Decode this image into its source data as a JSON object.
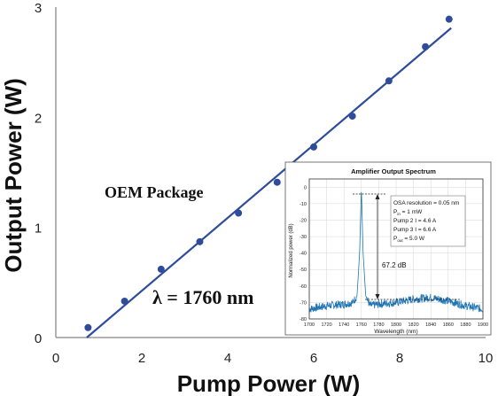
{
  "chart_data": [
    {
      "type": "scatter",
      "title": "",
      "xlabel": "Pump Power (W)",
      "ylabel": "Output Power (W)",
      "xlim": [
        0,
        10
      ],
      "ylim": [
        0,
        3
      ],
      "xticks": [
        "0",
        "2",
        "4",
        "6",
        "8",
        "10"
      ],
      "yticks": [
        "0",
        "1",
        "2",
        "3"
      ],
      "grid": false,
      "series": [
        {
          "points": [
            [
              0.75,
              0.09
            ],
            [
              1.6,
              0.33
            ],
            [
              2.45,
              0.62
            ],
            [
              3.35,
              0.87
            ],
            [
              4.25,
              1.13
            ],
            [
              5.15,
              1.41
            ],
            [
              6.0,
              1.73
            ],
            [
              6.9,
              2.01
            ],
            [
              7.75,
              2.33
            ],
            [
              8.6,
              2.64
            ],
            [
              9.15,
              2.89
            ]
          ],
          "color": "#2e4c9a"
        },
        {
          "type": "line",
          "fit_line": [
            [
              0.72,
              0.0
            ],
            [
              9.2,
              2.81
            ]
          ],
          "color": "#2e4c9a"
        }
      ],
      "annotations": [
        "OEM Package",
        "λ  = 1760 nm"
      ]
    },
    {
      "type": "line",
      "title": "Amplifier Output Spectrum",
      "xlabel": "Wavelength (nm)",
      "ylabel": "Normalized power (dB)",
      "xlim": [
        1700,
        1900
      ],
      "ylim": [
        -80,
        5
      ],
      "xticks": [
        "1700",
        "1720",
        "1740",
        "1760",
        "1780",
        "1800",
        "1820",
        "1840",
        "1860",
        "1880",
        "1900"
      ],
      "yticks": [
        "0",
        "-10",
        "-20",
        "-30",
        "-40",
        "-50",
        "-60",
        "-70",
        "-80"
      ],
      "grid": true,
      "series": [
        {
          "x": [
            1700,
            1720,
            1740,
            1750,
            1755,
            1758,
            1760,
            1762,
            1765,
            1770,
            1780,
            1800,
            1820,
            1840,
            1860,
            1880,
            1900
          ],
          "y": [
            -74,
            -72,
            -71,
            -70,
            -66,
            -40,
            0,
            -40,
            -66,
            -72,
            -71,
            -70,
            -68,
            -67,
            -69,
            -72,
            -74
          ],
          "color": "#1f74b4"
        }
      ],
      "annotations": [
        "67.2 dB"
      ],
      "legend_text": {
        "line1": "OSA resolution = 0.05 nm",
        "p_in_main": "P",
        "p_in_sub": "in",
        "p_in_rest": " = 1 mW",
        "pump2": "Pump 2 I = 4.6 A",
        "pump3": "Pump 3 I = 6.6 A",
        "p_out_main": "P",
        "p_out_sub": "out",
        "p_out_rest": " = 5.0 W"
      }
    }
  ]
}
